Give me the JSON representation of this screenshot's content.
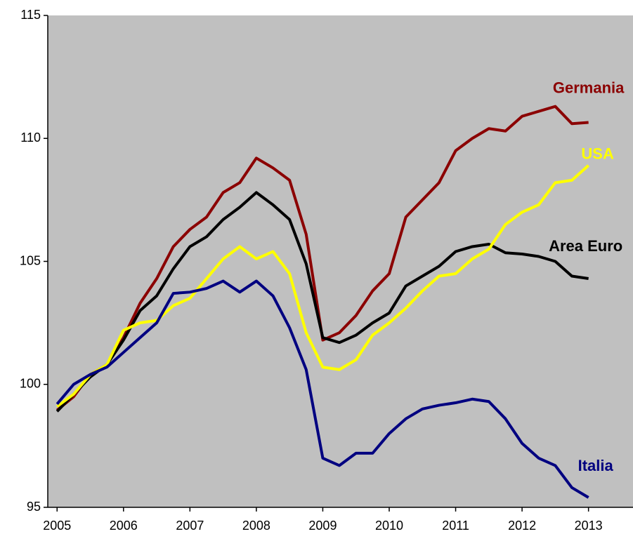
{
  "chart_data": {
    "type": "line",
    "x": [
      2005,
      2005.25,
      2005.5,
      2005.75,
      2006,
      2006.25,
      2006.5,
      2006.75,
      2007,
      2007.25,
      2007.5,
      2007.75,
      2008,
      2008.25,
      2008.5,
      2008.75,
      2009,
      2009.25,
      2009.5,
      2009.75,
      2010,
      2010.25,
      2010.5,
      2010.75,
      2011,
      2011.25,
      2011.5,
      2011.75,
      2012,
      2012.25,
      2012.5,
      2012.75,
      2013
    ],
    "series": [
      {
        "name": "Germania",
        "color": "#8b0000",
        "values": [
          98.95,
          99.5,
          100.4,
          100.8,
          101.9,
          103.3,
          104.3,
          105.6,
          106.3,
          106.8,
          107.8,
          108.2,
          109.2,
          108.8,
          108.3,
          106.1,
          101.8,
          102.1,
          102.8,
          103.8,
          104.5,
          106.8,
          107.5,
          108.2,
          109.5,
          110.0,
          110.4,
          110.3,
          110.9,
          111.1,
          111.3,
          110.6,
          110.65
        ]
      },
      {
        "name": "Area Euro",
        "color": "#000000",
        "values": [
          98.9,
          99.6,
          100.3,
          100.8,
          101.8,
          103.0,
          103.6,
          104.7,
          105.6,
          106.0,
          106.7,
          107.2,
          107.8,
          107.3,
          106.7,
          104.9,
          101.9,
          101.7,
          102.0,
          102.5,
          102.9,
          104.0,
          104.4,
          104.8,
          105.4,
          105.6,
          105.7,
          105.35,
          105.3,
          105.2,
          105.0,
          104.4,
          104.3
        ]
      },
      {
        "name": "USA",
        "color": "#ffff00",
        "values": [
          99.1,
          99.6,
          100.4,
          100.8,
          102.2,
          102.5,
          102.6,
          103.2,
          103.5,
          104.3,
          105.1,
          105.6,
          105.1,
          105.4,
          104.5,
          102.1,
          100.7,
          100.6,
          101.0,
          102.0,
          102.5,
          103.1,
          103.8,
          104.4,
          104.5,
          105.1,
          105.5,
          106.5,
          107.0,
          107.3,
          108.2,
          108.3,
          108.9
        ]
      },
      {
        "name": "Italia",
        "color": "#000080",
        "values": [
          99.2,
          100.0,
          100.4,
          100.7,
          101.3,
          101.9,
          102.5,
          103.7,
          103.75,
          103.9,
          104.2,
          103.75,
          104.2,
          103.6,
          102.3,
          100.6,
          97.0,
          96.7,
          97.2,
          97.2,
          98.0,
          98.6,
          99.0,
          99.15,
          99.25,
          99.4,
          99.3,
          98.6,
          97.6,
          97.0,
          96.7,
          95.8,
          95.4
        ]
      }
    ],
    "xlim": [
      2004.86,
      2013.67
    ],
    "xticks": [
      2005,
      2006,
      2007,
      2008,
      2009,
      2010,
      2011,
      2012,
      2013
    ],
    "ylim": [
      95,
      115
    ],
    "yticks": [
      95,
      100,
      105,
      110,
      115
    ]
  }
}
